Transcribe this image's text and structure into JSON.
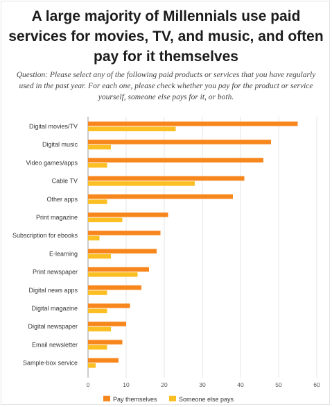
{
  "title": "A large majority of Millennials use paid services for movies, TV, and music, and often pay for it themselves",
  "subtitle": "Question: Please select any of the following paid products or services that you have regularly used in the past year. For each one, please check whether you pay for the product or service yourself, someone else pays for it, or both.",
  "colors": {
    "pay_themselves": "#f7861c",
    "someone_else_pays": "#fbbf24"
  },
  "chart_data": {
    "type": "bar",
    "orientation": "horizontal",
    "categories": [
      "Digital movies/TV",
      "Digital music",
      "Video games/apps",
      "Cable TV",
      "Other apps",
      "Print magazine",
      "Subscription for ebooks",
      "E-learning",
      "Print newspaper",
      "Digital news apps",
      "Digital magazine",
      "Digital newspaper",
      "Email newsletter",
      "Sample-box service"
    ],
    "series": [
      {
        "name": "Pay themselves",
        "values": [
          55,
          48,
          46,
          41,
          38,
          21,
          19,
          18,
          16,
          14,
          11,
          10,
          9,
          8
        ]
      },
      {
        "name": "Someone else pays",
        "values": [
          23,
          6,
          5,
          28,
          5,
          9,
          3,
          6,
          13,
          5,
          5,
          6,
          5,
          2
        ]
      }
    ],
    "xlim": [
      0,
      60
    ],
    "xticks": [
      "0",
      "10",
      "20",
      "30",
      "40",
      "50",
      "60"
    ],
    "legend": "bottom"
  }
}
